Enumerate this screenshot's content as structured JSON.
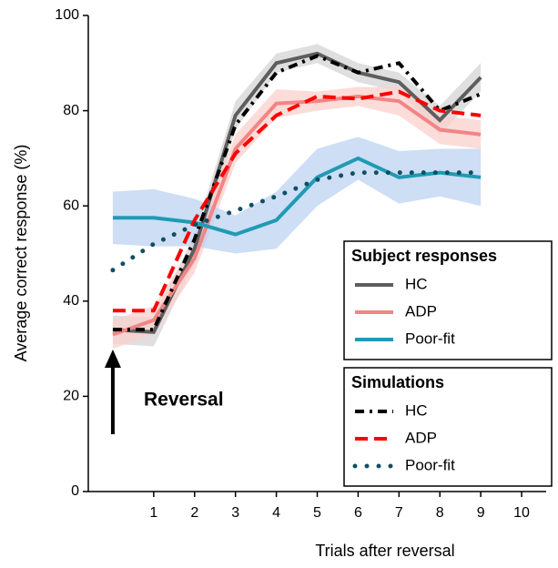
{
  "chart_data": {
    "type": "line",
    "xlabel": "Trials after reversal",
    "ylabel": "Average correct response (%)",
    "xlim": [
      -0.6,
      10.6
    ],
    "ylim": [
      0,
      100
    ],
    "xticks": [
      1,
      2,
      3,
      4,
      5,
      6,
      7,
      8,
      9,
      10
    ],
    "yticks": [
      0,
      20,
      40,
      60,
      80,
      100
    ],
    "x": [
      0,
      1,
      2,
      3,
      4,
      5,
      6,
      7,
      8,
      9
    ],
    "annotation": "Reversal",
    "groups": [
      {
        "title": "Subject responses",
        "series": [
          {
            "name": "HC",
            "color": "#5e5e5e",
            "band_color": "#d4d4d4",
            "dash": "solid",
            "values": [
              34,
              33.5,
              51,
              79,
              90,
              92,
              88,
              86,
              78,
              87
            ],
            "errors": [
              3,
              3,
              3,
              3,
              2,
              2,
              2,
              2,
              3,
              3
            ]
          },
          {
            "name": "ADP",
            "color": "#f28585",
            "band_color": "#f9d0cc",
            "dash": "solid",
            "values": [
              33,
              36,
              49,
              72,
              81.5,
              82,
              83,
              82,
              76,
              75
            ],
            "errors": [
              3,
              3,
              3,
              3,
              3,
              2,
              2,
              3,
              3,
              3
            ]
          },
          {
            "name": "Poor-fit",
            "color": "#1f9bb3",
            "band_color": "#bcd3f2",
            "dash": "solid",
            "values": [
              57.5,
              57.5,
              56.5,
              54,
              57,
              66,
              70,
              66,
              67,
              66
            ],
            "errors": [
              5.5,
              6,
              5,
              4,
              6,
              6,
              4.5,
              5.5,
              5,
              6
            ]
          }
        ]
      },
      {
        "title": "Simulations",
        "series": [
          {
            "name": "HC",
            "color": "#000000",
            "dash": "dashdot",
            "values": [
              34,
              34,
              53,
              77,
              88,
              91.5,
              88,
              90,
              80,
              83.5
            ]
          },
          {
            "name": "ADP",
            "color": "#ff0000",
            "dash": "dashed",
            "values": [
              38,
              38,
              57,
              71,
              79,
              83,
              82.5,
              84,
              80,
              79
            ]
          },
          {
            "name": "Poor-fit",
            "color": "#114e64",
            "dash": "dotted",
            "values": [
              46.5,
              52,
              56,
              59,
              62,
              65.5,
              67,
              67,
              67,
              67
            ]
          }
        ]
      }
    ]
  }
}
